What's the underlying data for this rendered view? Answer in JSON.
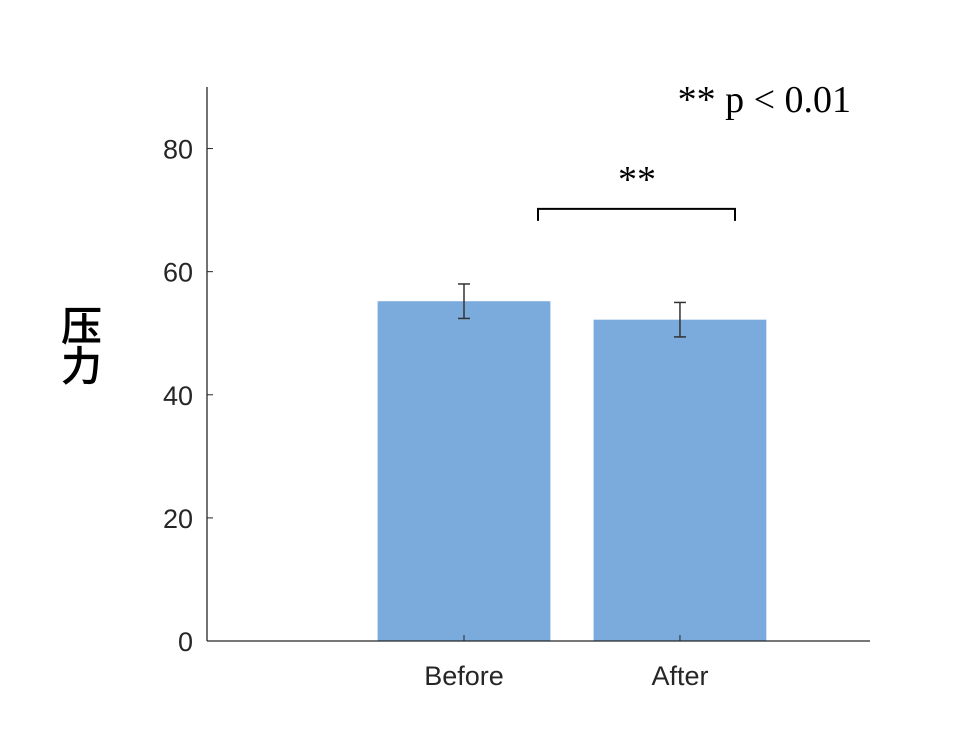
{
  "chart_data": {
    "type": "bar",
    "title": "",
    "xlabel": "",
    "ylabel": "压力",
    "categories": [
      "Before",
      "After"
    ],
    "values": [
      55.2,
      52.2
    ],
    "errors": [
      2.8,
      2.8
    ],
    "ylim": [
      0,
      90
    ],
    "yticks": [
      0,
      20,
      40,
      60,
      80
    ],
    "grid": false,
    "bar_color": "#7aabdc",
    "annotations": {
      "legend_note": "** p < 0.01",
      "significance": {
        "label": "**",
        "between": [
          "Before",
          "After"
        ],
        "y": 70.2
      }
    }
  }
}
